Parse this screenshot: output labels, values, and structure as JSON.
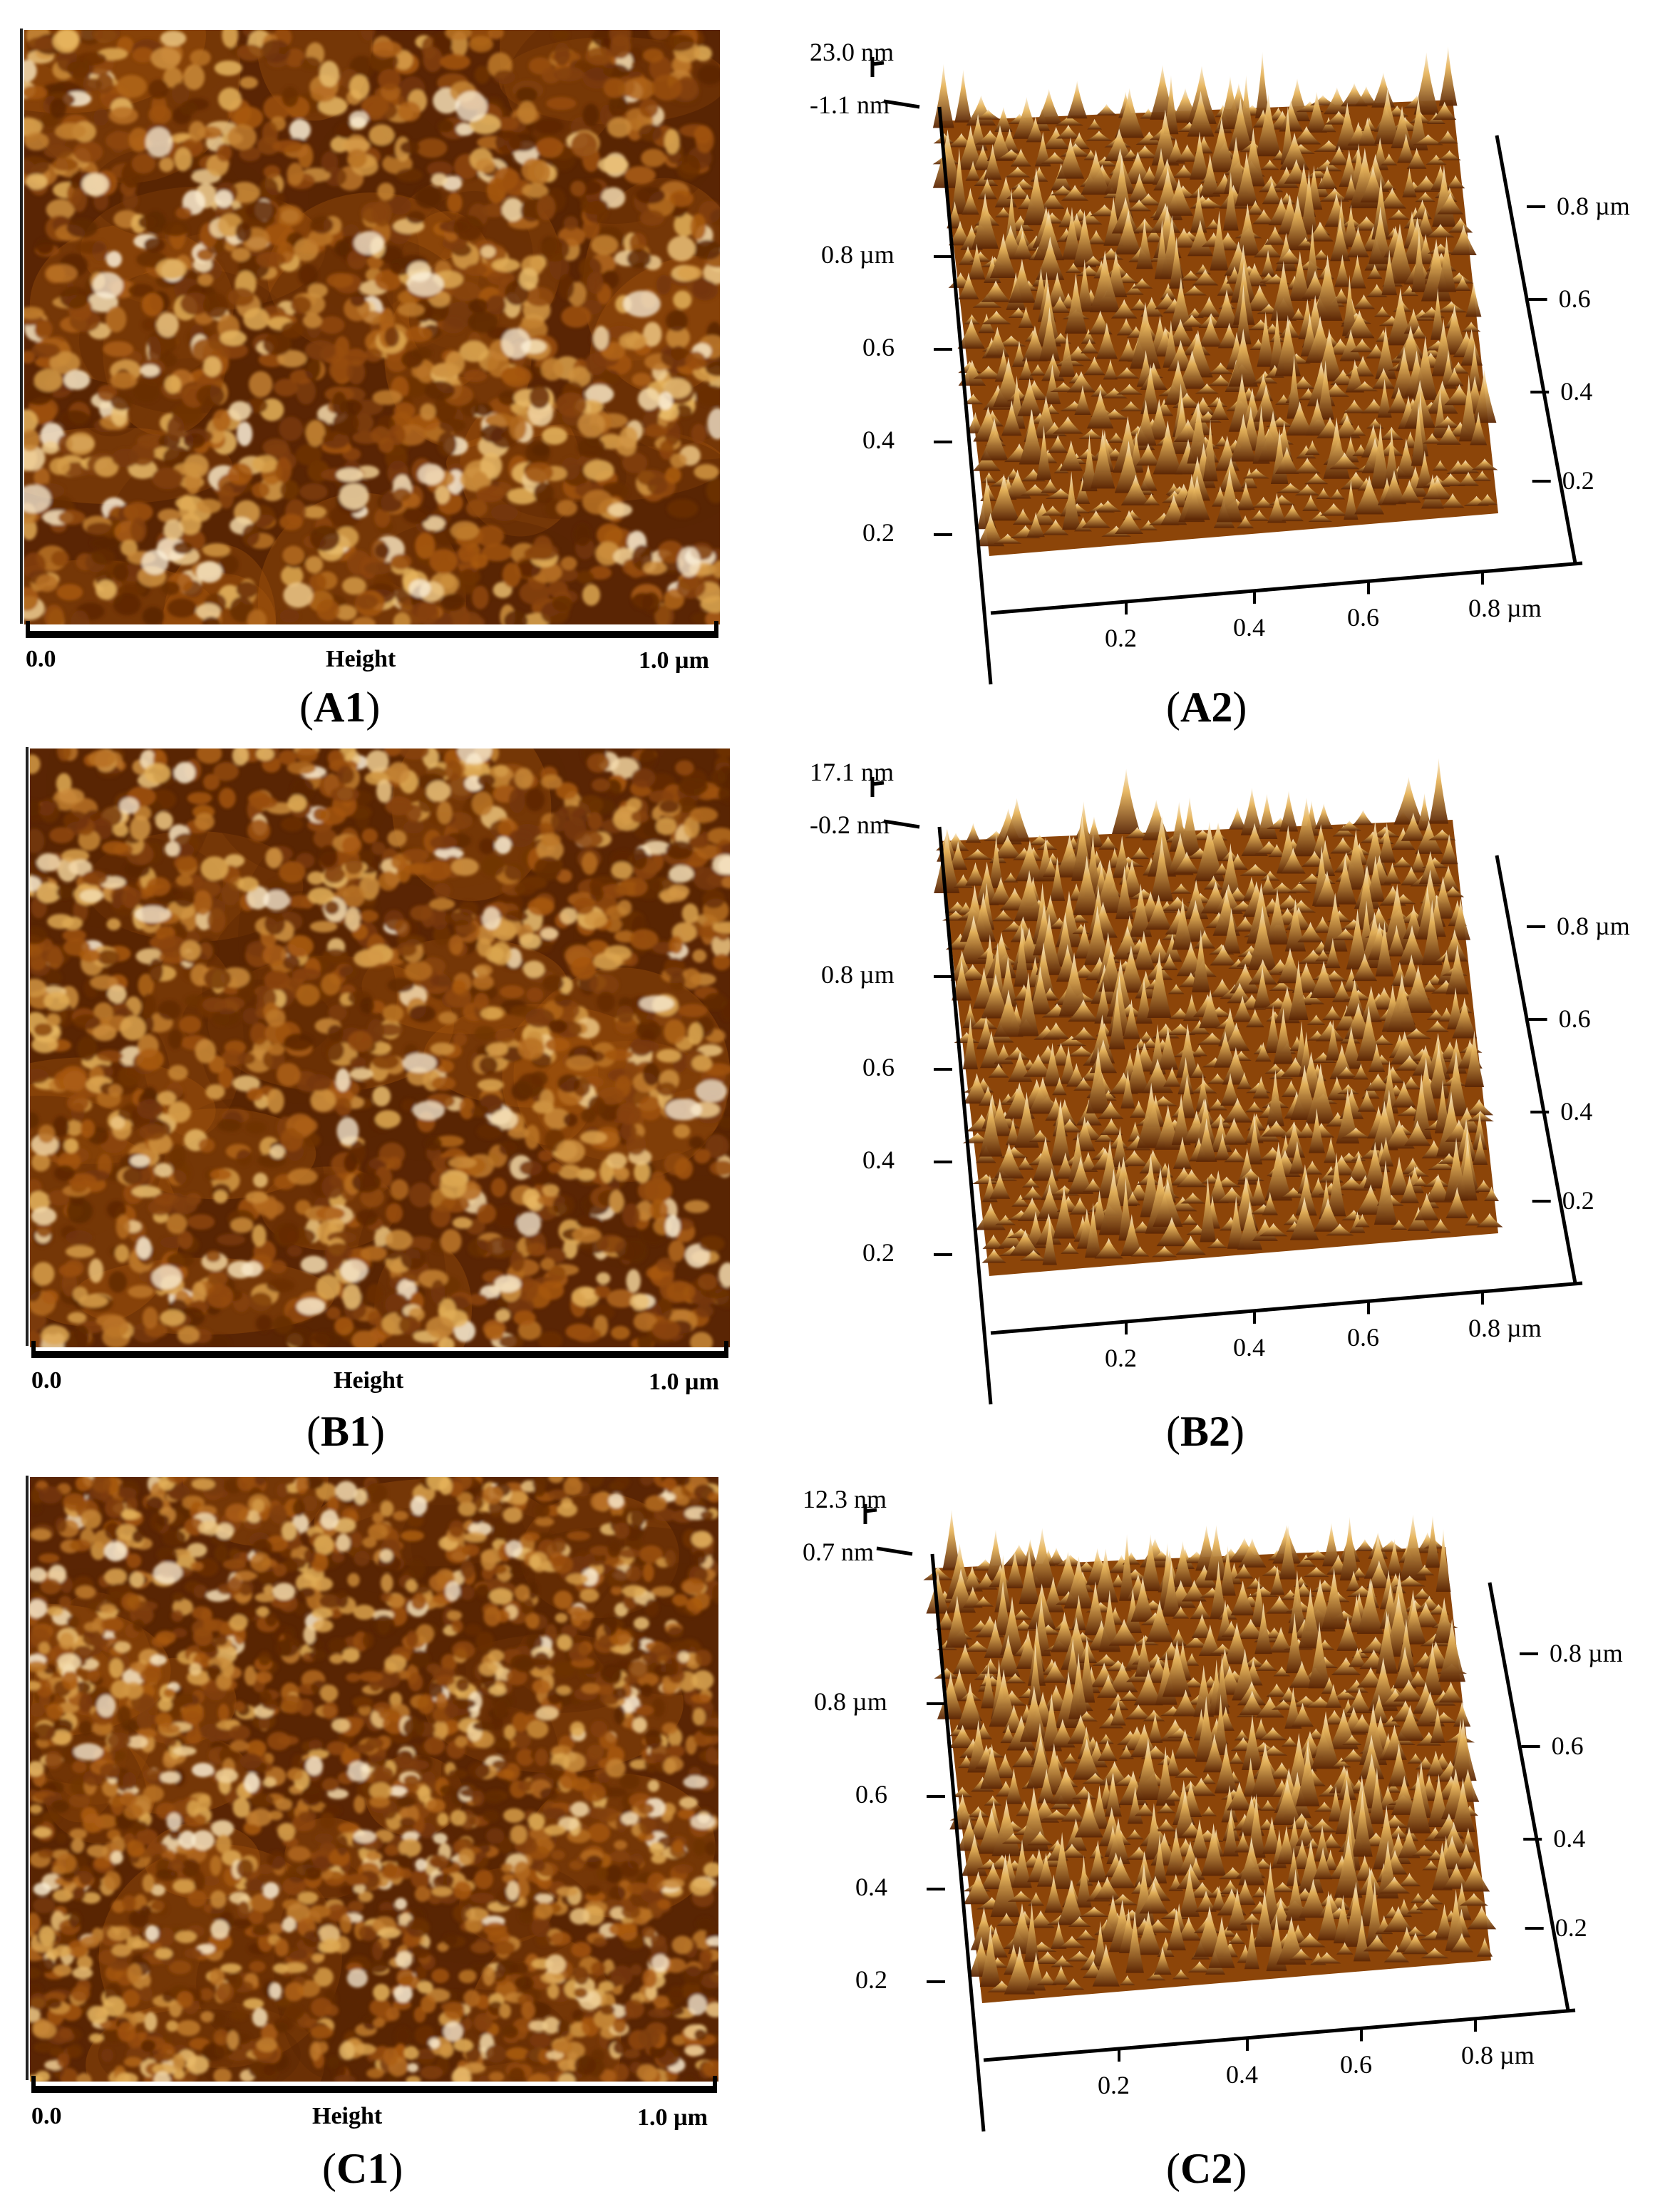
{
  "panels": [
    {
      "id": "A",
      "label1": "A1",
      "label2": "A2",
      "scale": {
        "start": "0.0",
        "mid": "Height",
        "end": "1.0 µm"
      },
      "z_top": "23.0 nm",
      "z_bottom": "-1.1 nm",
      "y_ticks": [
        "0.8 µm",
        "0.6",
        "0.4",
        "0.2"
      ],
      "r_ticks": [
        "0.8 µm",
        "0.6",
        "0.4",
        "0.2"
      ],
      "x_ticks": [
        "0.2",
        "0.4",
        "0.6",
        "0.8 µm"
      ]
    },
    {
      "id": "B",
      "label1": "B1",
      "label2": "B2",
      "scale": {
        "start": "0.0",
        "mid": "Height",
        "end": "1.0 µm"
      },
      "z_top": "17.1 nm",
      "z_bottom": "-0.2 nm",
      "y_ticks": [
        "0.8 µm",
        "0.6",
        "0.4",
        "0.2"
      ],
      "r_ticks": [
        "0.8 µm",
        "0.6",
        "0.4",
        "0.2"
      ],
      "x_ticks": [
        "0.2",
        "0.4",
        "0.6",
        "0.8 µm"
      ]
    },
    {
      "id": "C",
      "label1": "C1",
      "label2": "C2",
      "scale": {
        "start": "0.0",
        "mid": "Height",
        "end": "1.0 µm"
      },
      "z_top": "12.3 nm",
      "z_bottom": "0.7 nm",
      "y_ticks": [
        "0.8 µm",
        "0.6",
        "0.4",
        "0.2"
      ],
      "r_ticks": [
        "0.8 µm",
        "0.6",
        "0.4",
        "0.2"
      ],
      "x_ticks": [
        "0.2",
        "0.4",
        "0.6",
        "0.8 µm"
      ]
    }
  ],
  "colors": {
    "afm_dark": "#5a2504",
    "afm_mid": "#a8580f",
    "afm_light": "#e6b45c",
    "afm_highlight": "#fbefd8"
  }
}
